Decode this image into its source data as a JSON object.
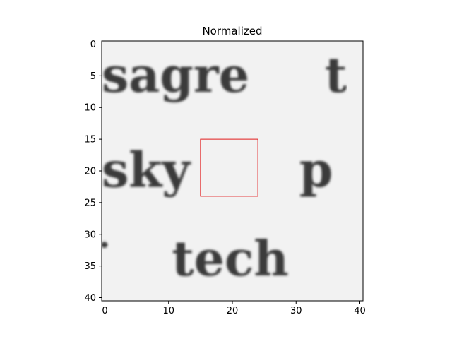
{
  "chart_data": {
    "type": "heatmap",
    "title": "Normalized",
    "xlabel": "",
    "ylabel": "",
    "x_range": [
      -0.5,
      40.5
    ],
    "y_range": [
      40.5,
      -0.5
    ],
    "x_ticks": [
      0,
      10,
      20,
      30,
      40
    ],
    "y_ticks": [
      0,
      5,
      10,
      15,
      20,
      25,
      30,
      35,
      40
    ],
    "colormap": "gray",
    "grid": false,
    "image_text_lines": [
      {
        "text": "sagre",
        "baseline_y": 7.5,
        "start_x": -0.5,
        "font_px": 68
      },
      {
        "text": "t",
        "baseline_y": 7.5,
        "start_x": 34.5,
        "font_px": 68
      },
      {
        "text": "sky",
        "baseline_y": 22.5,
        "start_x": -0.5,
        "font_px": 68
      },
      {
        "text": "p",
        "baseline_y": 22.5,
        "start_x": 30.5,
        "font_px": 68
      },
      {
        "text": "·",
        "baseline_y": 33.5,
        "start_x": -1.0,
        "font_px": 48
      },
      {
        "text": "tech",
        "baseline_y": 36.5,
        "start_x": 10.5,
        "font_px": 68
      }
    ],
    "highlight_box": {
      "x0": 15,
      "y0": 15,
      "x1": 24,
      "y1": 24,
      "color": "#e31a1c"
    }
  }
}
